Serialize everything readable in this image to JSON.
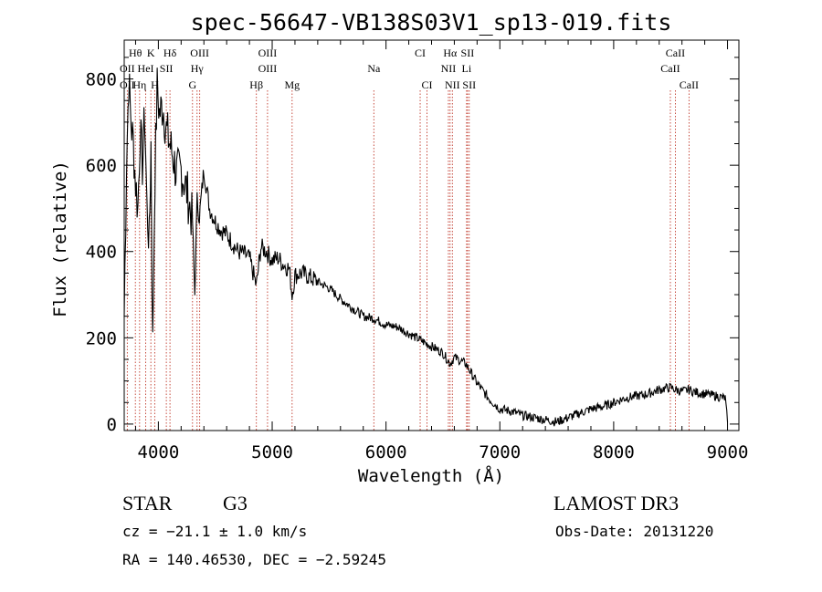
{
  "chart_data": {
    "type": "line",
    "title": "spec-56647-VB138S03V1_sp13-019.fits",
    "xlabel": "Wavelength (Å)",
    "ylabel": "Flux (relative)",
    "xlim": [
      3700,
      9100
    ],
    "ylim": [
      -15,
      890
    ],
    "x_ticks": [
      4000,
      5000,
      6000,
      7000,
      8000,
      9000
    ],
    "y_ticks": [
      0,
      200,
      400,
      600,
      800
    ],
    "grid": false,
    "series": [
      {
        "name": "flux",
        "x": [
          3700,
          3720,
          3740,
          3760,
          3780,
          3800,
          3820,
          3840,
          3860,
          3880,
          3900,
          3920,
          3935,
          3950,
          3970,
          3990,
          4010,
          4040,
          4070,
          4100,
          4130,
          4160,
          4200,
          4250,
          4300,
          4320,
          4340,
          4360,
          4400,
          4450,
          4500,
          4550,
          4600,
          4650,
          4700,
          4750,
          4800,
          4861,
          4900,
          4950,
          5000,
          5050,
          5100,
          5150,
          5175,
          5200,
          5250,
          5300,
          5400,
          5500,
          5600,
          5700,
          5800,
          5893,
          6000,
          6100,
          6200,
          6300,
          6400,
          6500,
          6563,
          6600,
          6700,
          6800,
          6900,
          7000,
          7100,
          7200,
          7300,
          7400,
          7500,
          7600,
          7700,
          7800,
          7900,
          8000,
          8100,
          8200,
          8300,
          8400,
          8498,
          8542,
          8600,
          8662,
          8700,
          8800,
          8900,
          8980,
          9000
        ],
        "values": [
          250,
          600,
          800,
          700,
          650,
          560,
          500,
          680,
          600,
          720,
          500,
          420,
          650,
          180,
          580,
          780,
          720,
          740,
          680,
          650,
          620,
          580,
          590,
          540,
          470,
          300,
          520,
          480,
          590,
          500,
          470,
          450,
          440,
          420,
          400,
          395,
          385,
          320,
          410,
          400,
          380,
          385,
          370,
          360,
          300,
          345,
          350,
          345,
          330,
          315,
          290,
          270,
          250,
          245,
          230,
          225,
          210,
          195,
          180,
          165,
          140,
          155,
          140,
          95,
          60,
          35,
          30,
          20,
          15,
          10,
          5,
          15,
          25,
          35,
          40,
          50,
          60,
          65,
          70,
          80,
          85,
          80,
          75,
          80,
          75,
          70,
          65,
          60,
          5
        ]
      }
    ],
    "spectral_lines": [
      {
        "label": "Hθ",
        "wavelength": 3798,
        "row": 1
      },
      {
        "label": "K",
        "wavelength": 3934,
        "row": 1
      },
      {
        "label": "Hδ",
        "wavelength": 4102,
        "row": 1
      },
      {
        "label": "OIII",
        "wavelength": 4363,
        "row": 1
      },
      {
        "label": "OIII",
        "wavelength": 4959,
        "row": 1
      },
      {
        "label": "CI",
        "wavelength": 6300,
        "row": 1
      },
      {
        "label": "Hα",
        "wavelength": 6563,
        "row": 1
      },
      {
        "label": "SII",
        "wavelength": 6716,
        "row": 1
      },
      {
        "label": "CaII",
        "wavelength": 8542,
        "row": 1
      },
      {
        "label": "OII",
        "wavelength": 3727,
        "row": 2
      },
      {
        "label": "HeI",
        "wavelength": 3889,
        "row": 2
      },
      {
        "label": "SII",
        "wavelength": 4070,
        "row": 2
      },
      {
        "label": "Hγ",
        "wavelength": 4340,
        "row": 2
      },
      {
        "label": "OIII",
        "wavelength": 4959,
        "row": 2
      },
      {
        "label": "Na",
        "wavelength": 5893,
        "row": 2
      },
      {
        "label": "NII",
        "wavelength": 6548,
        "row": 2
      },
      {
        "label": "Li",
        "wavelength": 6708,
        "row": 2
      },
      {
        "label": "CaII",
        "wavelength": 8498,
        "row": 2
      },
      {
        "label": "OII",
        "wavelength": 3727,
        "row": 3
      },
      {
        "label": "Hη",
        "wavelength": 3835,
        "row": 3
      },
      {
        "label": "H",
        "wavelength": 3968,
        "row": 3
      },
      {
        "label": "G",
        "wavelength": 4300,
        "row": 3
      },
      {
        "label": "Hβ",
        "wavelength": 4861,
        "row": 3
      },
      {
        "label": "Mg",
        "wavelength": 5175,
        "row": 3
      },
      {
        "label": "CI",
        "wavelength": 6360,
        "row": 3
      },
      {
        "label": "NII",
        "wavelength": 6583,
        "row": 3
      },
      {
        "label": "SII",
        "wavelength": 6731,
        "row": 3
      },
      {
        "label": "CaII",
        "wavelength": 8662,
        "row": 3
      }
    ]
  },
  "info": {
    "object_class": "STAR",
    "subclass": "G3",
    "survey": "LAMOST DR3",
    "redshift_line": "cz = −21.1 ± 1.0 km/s",
    "obs_date": "Obs-Date: 20131220",
    "coords_line": "RA = 140.46530, DEC =  −2.59245"
  }
}
